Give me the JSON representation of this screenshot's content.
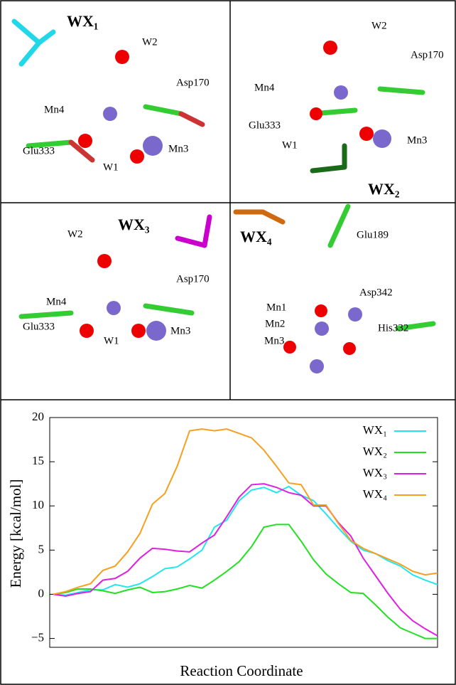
{
  "panels": [
    {
      "labels": [
        "WX₁",
        "W2",
        "Asp170",
        "Mn4",
        "Glu333",
        "W1",
        "Mn3"
      ]
    },
    {
      "labels": [
        "W2",
        "Asp170",
        "Mn4",
        "Glu333",
        "W1",
        "Mn3",
        "WX₂"
      ]
    },
    {
      "labels": [
        "WX₃",
        "W2",
        "Asp170",
        "Mn4",
        "Glu333",
        "W1",
        "Mn3"
      ]
    },
    {
      "labels": [
        "WX₄",
        "Glu189",
        "Mn1",
        "Asp342",
        "Mn2",
        "Mn3",
        "His332"
      ]
    }
  ],
  "chart_data": {
    "type": "line",
    "y_label": "Energy [kcal/mol]",
    "x_label": "Reaction Coordinate",
    "ylim": [
      -6,
      20
    ],
    "yticks": [
      {
        "value": -5,
        "label": "−5"
      },
      0,
      5,
      10,
      15,
      20
    ],
    "series": [
      {
        "name": "WX₁",
        "color": "#22e5f0",
        "values": [
          0,
          -0.1,
          0.2,
          0.5,
          0.5,
          1.1,
          0.8,
          1.2,
          2.0,
          2.9,
          3.1,
          4.0,
          5.0,
          7.6,
          8.4,
          10.6,
          11.8,
          12.1,
          11.5,
          12.2,
          11.2,
          10.6,
          9.1,
          7.5,
          6.0,
          5.0,
          4.6,
          3.8,
          3.2,
          2.2,
          1.6,
          1.1
        ]
      },
      {
        "name": "WX₂",
        "color": "#22e022",
        "values": [
          0,
          0.2,
          0.6,
          0.6,
          0.4,
          0.1,
          0.5,
          0.8,
          0.2,
          0.3,
          0.6,
          1.0,
          0.7,
          1.6,
          2.6,
          3.7,
          5.4,
          7.6,
          7.9,
          7.9,
          6.0,
          3.9,
          2.3,
          1.2,
          0.2,
          0.1,
          -1.2,
          -2.6,
          -3.8,
          -4.4,
          -5.0,
          -5.0
        ]
      },
      {
        "name": "WX₃",
        "color": "#e020e0",
        "values": [
          0,
          -0.2,
          0.1,
          0.3,
          1.6,
          1.8,
          2.6,
          4.1,
          5.2,
          5.1,
          4.9,
          4.8,
          5.8,
          6.7,
          8.8,
          11.0,
          12.4,
          12.5,
          12.1,
          11.5,
          11.2,
          10.0,
          10.0,
          8.1,
          6.6,
          4.1,
          2.1,
          0.1,
          -1.7,
          -3.0,
          -3.9,
          -4.7
        ]
      },
      {
        "name": "WX₄",
        "color": "#f5a020",
        "values": [
          0,
          0.3,
          0.8,
          1.2,
          2.7,
          3.2,
          4.8,
          6.9,
          10.2,
          11.4,
          14.5,
          18.5,
          18.7,
          18.5,
          18.7,
          18.2,
          17.7,
          16.3,
          14.5,
          12.6,
          12.4,
          10.1,
          10.1,
          8.0,
          6.1,
          5.2,
          4.6,
          4.0,
          3.4,
          2.6,
          2.2,
          2.4
        ]
      }
    ]
  }
}
